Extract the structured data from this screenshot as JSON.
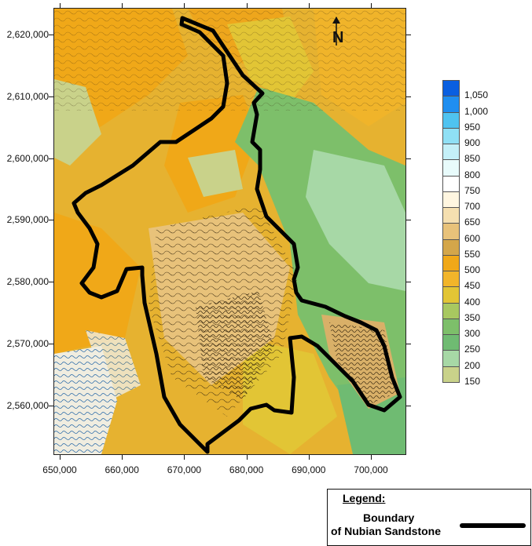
{
  "map": {
    "y_ticks": [
      "2,620,000",
      "2,610,000",
      "2,600,000",
      "2,590,000",
      "2,580,000",
      "2,570,000",
      "2,560,000"
    ],
    "x_ticks": [
      "650,000",
      "660,000",
      "670,000",
      "680,000",
      "690,000",
      "700,000"
    ],
    "colorbar": {
      "labels": [
        "1,050",
        "1,000",
        "950",
        "900",
        "850",
        "800",
        "750",
        "700",
        "650",
        "600",
        "550",
        "500",
        "450",
        "400",
        "350",
        "300",
        "250",
        "200",
        "150"
      ],
      "colors": [
        "#0a5fe0",
        "#1f8ef0",
        "#4fc3f0",
        "#8fe0f5",
        "#c4f0f8",
        "#e8fbfb",
        "#ffffff",
        "#fff6e0",
        "#f5dfb0",
        "#e8c27a",
        "#d4a64a",
        "#f0a818",
        "#f2b52a",
        "#e2c535",
        "#a8c860",
        "#7dbf6a",
        "#6fbb72",
        "#a7d8a6",
        "#c9d28a"
      ]
    },
    "legend": {
      "title": "Legend:",
      "line1": "Boundary",
      "line2": "of Nubian Sandstone"
    },
    "north_label": "N"
  }
}
